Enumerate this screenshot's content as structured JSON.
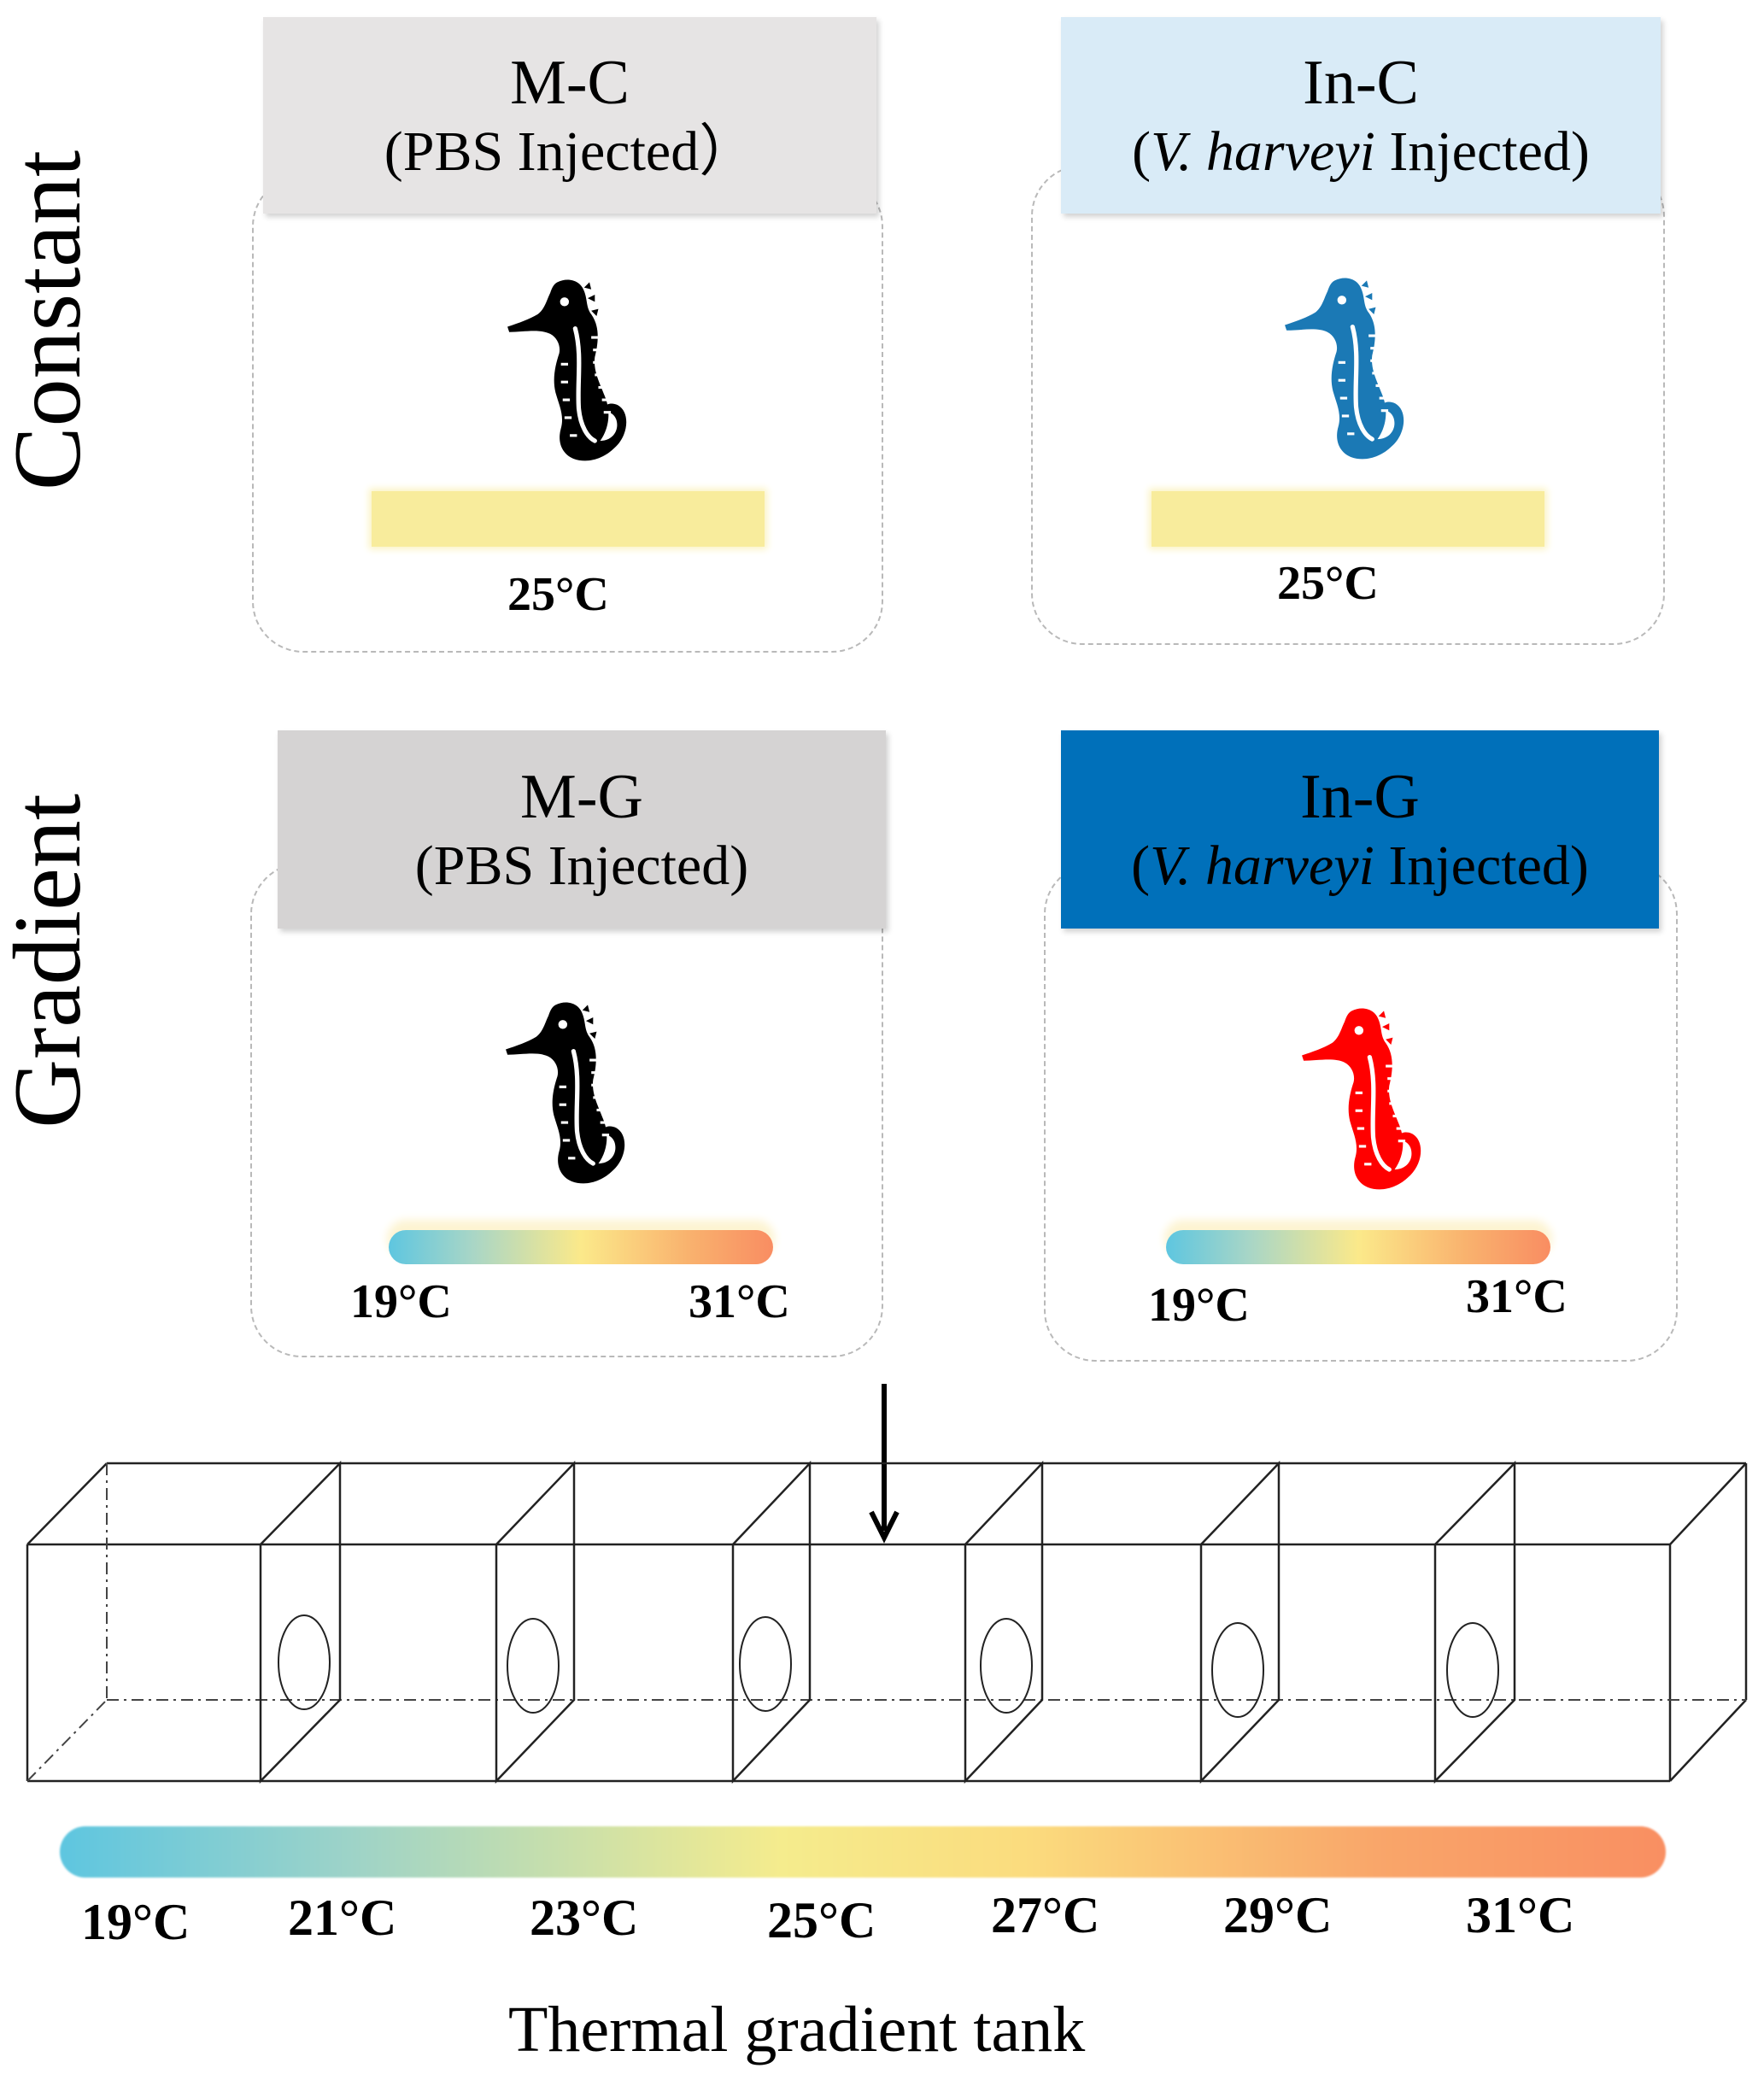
{
  "rows": {
    "constant": "Constant",
    "gradient": "Gradient"
  },
  "groups": {
    "mc": {
      "code": "M-C",
      "sub": "(PBS Injected）",
      "temp": "25°C"
    },
    "inc": {
      "code": "In-C",
      "sub_species": "V. harveyi",
      "sub_rest": " Injected)",
      "sub_open": "(",
      "temp": "25°C"
    },
    "mg": {
      "code": "M-G",
      "sub": "(PBS Injected)",
      "temp_low": "19°C",
      "temp_high": "31°C"
    },
    "ing": {
      "code": "In-G",
      "sub_species": "V. harveyi",
      "sub_rest": " Injected)",
      "sub_open": "(",
      "temp_low": "19°C",
      "temp_high": "31°C"
    }
  },
  "tank": {
    "ticks": [
      "19°C",
      "21°C",
      "23°C",
      "25°C",
      "27°C",
      "29°C",
      "31°C"
    ],
    "caption": "Thermal gradient tank"
  },
  "colors": {
    "mc_header": "#e6e4e4",
    "inc_header": "#d9ebf7",
    "mg_header": "#d5d3d3",
    "ing_header": "#0070ba",
    "seahorse_black": "#000000",
    "seahorse_blue": "#1b79b5",
    "seahorse_red": "#ff0000"
  },
  "icons": [
    "seahorse-icon",
    "down-arrow-icon",
    "gradient-tank-icon"
  ]
}
